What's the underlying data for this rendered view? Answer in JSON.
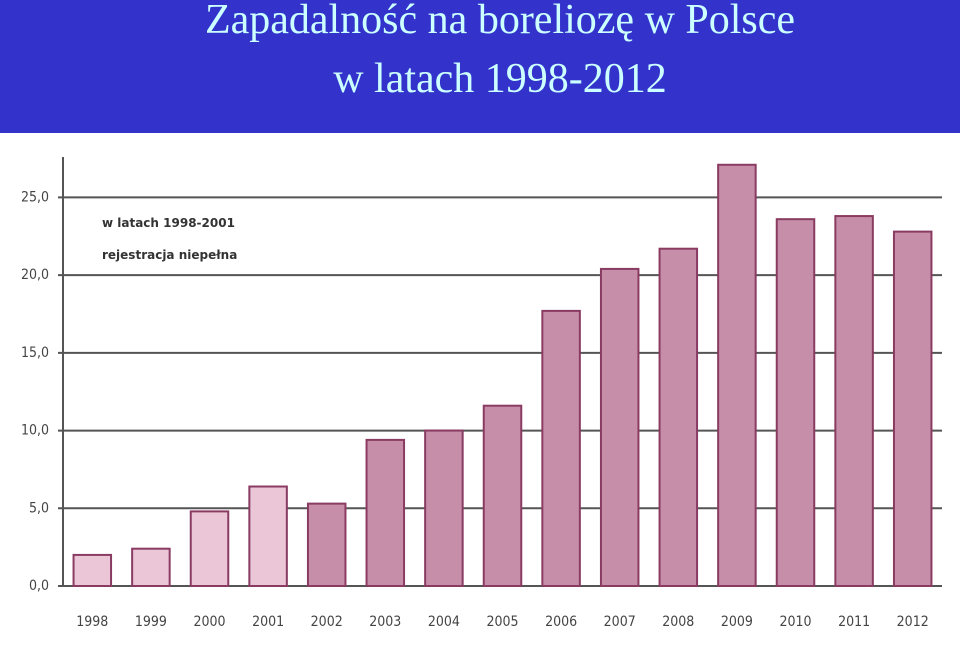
{
  "chart_data": {
    "type": "bar",
    "title": "Zapadalność na boreliozę w Polsce",
    "subtitle": "w latach 1998-2012",
    "annotation": [
      "w latach 1998-2001",
      "rejestracja niepełna"
    ],
    "categories": [
      "1998",
      "1999",
      "2000",
      "2001",
      "2002",
      "2003",
      "2004",
      "2005",
      "2006",
      "2007",
      "2008",
      "2009",
      "2010",
      "2011",
      "2012"
    ],
    "values": [
      2.0,
      2.4,
      4.8,
      6.4,
      5.3,
      9.4,
      10.0,
      11.6,
      17.7,
      20.4,
      21.7,
      27.1,
      23.6,
      23.8,
      22.8
    ],
    "colors": [
      "#eac6d6",
      "#eac6d6",
      "#eac6d6",
      "#eac6d6",
      "#c68ea8",
      "#c68ea8",
      "#c68ea8",
      "#c68ea8",
      "#c68ea8",
      "#c68ea8",
      "#c68ea8",
      "#c68ea8",
      "#c68ea8",
      "#c68ea8",
      "#c68ea8"
    ],
    "ylim": [
      0,
      27.6
    ],
    "yticks": [
      {
        "value": 0,
        "label": "0,0"
      },
      {
        "value": 5,
        "label": "5,0"
      },
      {
        "value": 10,
        "label": "10,0"
      },
      {
        "value": 15,
        "label": "15,0"
      },
      {
        "value": 20,
        "label": "20,0"
      },
      {
        "value": 25,
        "label": "25,0"
      }
    ],
    "grid": true
  }
}
